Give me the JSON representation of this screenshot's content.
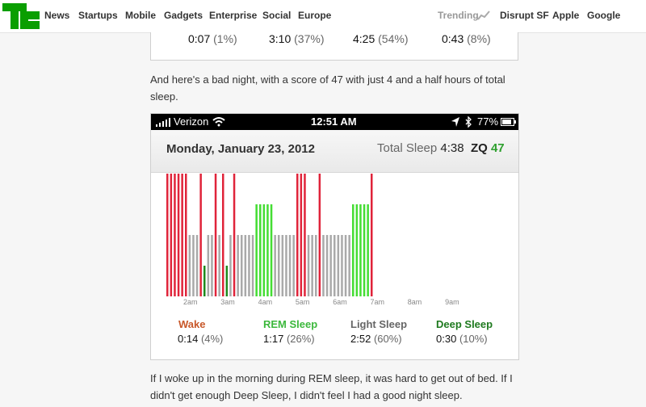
{
  "nav": {
    "left": [
      "News",
      "Startups",
      "Mobile",
      "Gadgets",
      "Enterprise",
      "Social",
      "Europe"
    ],
    "trending": "Trending",
    "right": [
      "Disrupt SF",
      "Apple",
      "Google"
    ]
  },
  "prev_card": {
    "values": [
      {
        "time": "0:07",
        "pct": "(1%)"
      },
      {
        "time": "3:10",
        "pct": "(37%)"
      },
      {
        "time": "4:25",
        "pct": "(54%)"
      },
      {
        "time": "0:43",
        "pct": "(8%)"
      }
    ]
  },
  "para1": "And here's a bad night, with a score of 47 with just 4 and a half hours of total sleep.",
  "phone": {
    "status": {
      "carrier": "Verizon",
      "time": "12:51 AM",
      "battery": "77%"
    },
    "date": "Monday, January 23, 2012",
    "total_label": "Total Sleep",
    "total_value": "4:38",
    "zq_label": "ZQ",
    "zq_value": "47",
    "legend": [
      {
        "label": "Wake",
        "time": "0:14",
        "pct": "(4%)",
        "color": "#c8582a"
      },
      {
        "label": "REM Sleep",
        "time": "1:17",
        "pct": "(26%)",
        "color": "#3cb83c"
      },
      {
        "label": "Light Sleep",
        "time": "2:52",
        "pct": "(60%)",
        "color": "#666666"
      },
      {
        "label": "Deep Sleep",
        "time": "0:30",
        "pct": "(10%)",
        "color": "#1f7a1f"
      }
    ]
  },
  "para2": "If I woke up in the morning during REM sleep, it was hard to get out of bed. If I didn't get enough Deep Sleep, I didn't feel I had a good night sleep.",
  "chart_data": {
    "type": "bar",
    "x_ticks": [
      "2am",
      "3am",
      "4am",
      "5am",
      "6am",
      "7am",
      "8am",
      "9am"
    ],
    "levels": {
      "wake": 4,
      "rem": 3,
      "light": 2,
      "deep": 1
    },
    "colors": {
      "wake": "#e0243a",
      "rem": "#44dd33",
      "light": "#a9a9a9",
      "deep": "#1f8a1f"
    },
    "series": [
      "wake",
      "wake",
      "wake",
      "wake",
      "wake",
      "wake",
      "light",
      "light",
      "light",
      "wake",
      "deep",
      "light",
      "light",
      "wake",
      "light",
      "wake",
      "deep",
      "light",
      "wake",
      "light",
      "light",
      "light",
      "light",
      "light",
      "rem",
      "rem",
      "rem",
      "rem",
      "rem",
      "light",
      "light",
      "light",
      "light",
      "light",
      "light",
      "wake",
      "wake",
      "wake",
      "light",
      "light",
      "light",
      "wake",
      "light",
      "light",
      "light",
      "light",
      "light",
      "light",
      "light",
      "light",
      "rem",
      "rem",
      "rem",
      "rem",
      "rem",
      "wake"
    ]
  }
}
